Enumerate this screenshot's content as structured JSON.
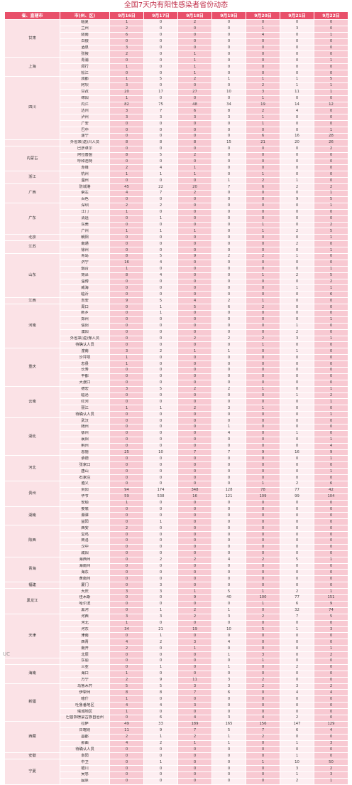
{
  "title": "全国7天内有阳性感染者省份动态",
  "headers": [
    "省、直辖市",
    "市(州、区)",
    "9月16日",
    "9月17日",
    "9月18日",
    "9月19日",
    "9月20日",
    "9月21日",
    "9月22日"
  ],
  "rows": [
    {
      "p": "甘肃",
      "span": 6,
      "c": "临夏",
      "v": [
        "1",
        "0",
        "2",
        "0",
        "0",
        "0",
        "0"
      ]
    },
    {
      "c": "兰州",
      "v": [
        "2",
        "0",
        "0",
        "0",
        "1",
        "3",
        "0"
      ]
    },
    {
      "c": "陇南",
      "v": [
        "6",
        "0",
        "0",
        "0",
        "4",
        "0",
        "1"
      ]
    },
    {
      "c": "白银",
      "v": [
        "0",
        "0",
        "0",
        "0",
        "0",
        "0",
        "0"
      ]
    },
    {
      "c": "酒泉",
      "v": [
        "3",
        "0",
        "0",
        "0",
        "0",
        "0",
        "0"
      ]
    },
    {
      "c": "张掖",
      "v": [
        "2",
        "0",
        "1",
        "0",
        "0",
        "0",
        "0"
      ]
    },
    {
      "p": "上海",
      "span": 3,
      "c": "青浦",
      "v": [
        "0",
        "0",
        "1",
        "0",
        "0",
        "0",
        "1"
      ]
    },
    {
      "c": "闵行",
      "v": [
        "1",
        "0",
        "1",
        "0",
        "0",
        "0",
        "0"
      ]
    },
    {
      "c": "松江",
      "v": [
        "0",
        "0",
        "1",
        "0",
        "0",
        "0",
        "0"
      ]
    },
    {
      "p": "四川",
      "span": 10,
      "c": "成都",
      "v": [
        "1",
        "5",
        "2",
        "1",
        "1",
        "1",
        "5"
      ]
    },
    {
      "c": "阿坝",
      "v": [
        "3",
        "0",
        "0",
        "0",
        "2",
        "1",
        "1"
      ]
    },
    {
      "c": "甘孜",
      "v": [
        "20",
        "17",
        "27",
        "10",
        "3",
        "11",
        "1"
      ]
    },
    {
      "c": "绵阳",
      "v": [
        "1",
        "0",
        "0",
        "0",
        "1",
        "0",
        "0"
      ]
    },
    {
      "c": "内江",
      "v": [
        "82",
        "75",
        "48",
        "34",
        "19",
        "14",
        "12"
      ]
    },
    {
      "c": "达州",
      "v": [
        "3",
        "7",
        "6",
        "8",
        "2",
        "4",
        "0"
      ]
    },
    {
      "c": "泸州",
      "v": [
        "3",
        "3",
        "3",
        "3",
        "1",
        "0",
        "0"
      ]
    },
    {
      "c": "广安",
      "v": [
        "0",
        "0",
        "0",
        "0",
        "1",
        "0",
        "0"
      ]
    },
    {
      "c": "巴中",
      "v": [
        "0",
        "0",
        "0",
        "0",
        "0",
        "0",
        "1"
      ]
    },
    {
      "c": "遂宁",
      "v": [
        "0",
        "0",
        "0",
        "0",
        "6",
        "16",
        "28"
      ]
    },
    {
      "p": "",
      "span": 1,
      "c": "外省来(返)川人员",
      "v": [
        "8",
        "8",
        "8",
        "15",
        "21",
        "20",
        "26"
      ]
    },
    {
      "p": "内蒙古",
      "span": 4,
      "c": "巴彦卓尔",
      "v": [
        "0",
        "0",
        "0",
        "0",
        "0",
        "0",
        "2"
      ]
    },
    {
      "c": "阿拉善盟",
      "v": [
        "8",
        "5",
        "2",
        "0",
        "0",
        "0",
        "0"
      ]
    },
    {
      "c": "呼和浩特",
      "v": [
        "0",
        "0",
        "0",
        "0",
        "0",
        "0",
        "0"
      ]
    },
    {
      "c": "赤峰",
      "v": [
        "2",
        "4",
        "1",
        "0",
        "0",
        "0",
        "0"
      ]
    },
    {
      "p": "浙江",
      "span": 2,
      "c": "杭州",
      "v": [
        "1",
        "1",
        "1",
        "0",
        "1",
        "0",
        "0"
      ]
    },
    {
      "c": "温州",
      "v": [
        "0",
        "0",
        "0",
        "1",
        "2",
        "1",
        "0"
      ]
    },
    {
      "p": "广西",
      "span": 3,
      "c": "防城港",
      "v": [
        "45",
        "22",
        "20",
        "7",
        "6",
        "2",
        "2"
      ]
    },
    {
      "c": "崇左",
      "v": [
        "4",
        "7",
        "2",
        "0",
        "0",
        "0",
        "1"
      ]
    },
    {
      "c": "百色",
      "v": [
        "0",
        "0",
        "0",
        "0",
        "0",
        "9",
        "5"
      ]
    },
    {
      "p": "广东",
      "span": 5,
      "c": "深圳",
      "v": [
        "2",
        "2",
        "0",
        "0",
        "0",
        "0",
        "1"
      ]
    },
    {
      "c": "江门",
      "v": [
        "1",
        "0",
        "0",
        "0",
        "0",
        "0",
        "0"
      ]
    },
    {
      "c": "清远",
      "v": [
        "0",
        "1",
        "0",
        "0",
        "0",
        "0",
        "0"
      ]
    },
    {
      "c": "东莞",
      "v": [
        "0",
        "0",
        "0",
        "0",
        "1",
        "0",
        "2"
      ]
    },
    {
      "c": "广州",
      "v": [
        "1",
        "1",
        "1",
        "0",
        "1",
        "2",
        "5"
      ]
    },
    {
      "p": "北京",
      "span": 1,
      "c": "朝阳",
      "v": [
        "0",
        "0",
        "0",
        "0",
        "0",
        "0",
        "1"
      ]
    },
    {
      "p": "江苏",
      "span": 2,
      "c": "南通",
      "v": [
        "0",
        "0",
        "0",
        "0",
        "0",
        "2",
        "0"
      ]
    },
    {
      "c": "徐州",
      "v": [
        "0",
        "0",
        "0",
        "0",
        "0",
        "0",
        "1"
      ]
    },
    {
      "p": "山东",
      "span": 7,
      "c": "青岛",
      "v": [
        "8",
        "5",
        "9",
        "2",
        "2",
        "1",
        "0"
      ]
    },
    {
      "c": "济宁",
      "v": [
        "16",
        "4",
        "0",
        "0",
        "0",
        "0",
        "0"
      ]
    },
    {
      "c": "烟台",
      "v": [
        "1",
        "0",
        "0",
        "0",
        "0",
        "0",
        "1"
      ]
    },
    {
      "c": "菏泽",
      "v": [
        "8",
        "4",
        "0",
        "0",
        "1",
        "2",
        "5"
      ]
    },
    {
      "c": "淄博",
      "v": [
        "0",
        "0",
        "0",
        "0",
        "0",
        "0",
        "2"
      ]
    },
    {
      "c": "威海",
      "v": [
        "0",
        "0",
        "0",
        "0",
        "0",
        "1",
        "1"
      ]
    },
    {
      "c": "临沂",
      "v": [
        "0",
        "0",
        "0",
        "0",
        "0",
        "0",
        "6"
      ]
    },
    {
      "p": "江西",
      "span": 1,
      "c": "吉安",
      "v": [
        "9",
        "5",
        "4",
        "2",
        "1",
        "0",
        "0"
      ]
    },
    {
      "p": "河南",
      "span": 7,
      "c": "周口",
      "v": [
        "0",
        "1",
        "5",
        "6",
        "2",
        "0",
        "0"
      ]
    },
    {
      "c": "新乡",
      "v": [
        "0",
        "1",
        "0",
        "0",
        "0",
        "0",
        "0"
      ]
    },
    {
      "c": "郑州",
      "v": [
        "0",
        "0",
        "0",
        "0",
        "0",
        "0",
        "1"
      ]
    },
    {
      "c": "信阳",
      "v": [
        "0",
        "0",
        "0",
        "0",
        "0",
        "1",
        "0"
      ]
    },
    {
      "c": "濮阳",
      "v": [
        "0",
        "0",
        "0",
        "0",
        "0",
        "2",
        "0"
      ]
    },
    {
      "c": "外省来(返)豫人员",
      "v": [
        "0",
        "0",
        "2",
        "2",
        "2",
        "3",
        "1"
      ]
    },
    {
      "c": "待确认人员",
      "v": [
        "0",
        "0",
        "0",
        "0",
        "1",
        "0",
        "0"
      ]
    },
    {
      "p": "重庆",
      "span": 6,
      "c": "潼南",
      "v": [
        "3",
        "2",
        "1",
        "1",
        "0",
        "1",
        "0"
      ]
    },
    {
      "c": "沙坪坝",
      "v": [
        "1",
        "0",
        "0",
        "0",
        "0",
        "0",
        "0"
      ]
    },
    {
      "c": "忠县",
      "v": [
        "1",
        "0",
        "0",
        "0",
        "0",
        "0",
        "0"
      ]
    },
    {
      "c": "长寿",
      "v": [
        "0",
        "0",
        "0",
        "0",
        "0",
        "0",
        "0"
      ]
    },
    {
      "c": "丰都",
      "v": [
        "0",
        "0",
        "0",
        "0",
        "0",
        "0",
        "0"
      ]
    },
    {
      "c": "大渡口",
      "v": [
        "0",
        "0",
        "0",
        "0",
        "0",
        "0",
        "0"
      ]
    },
    {
      "p": "云南",
      "span": 5,
      "c": "德宏",
      "v": [
        "3",
        "5",
        "2",
        "2",
        "1",
        "0",
        "1"
      ]
    },
    {
      "c": "临沧",
      "v": [
        "0",
        "0",
        "0",
        "0",
        "0",
        "1",
        "2"
      ]
    },
    {
      "c": "红河",
      "v": [
        "0",
        "0",
        "0",
        "0",
        "0",
        "0",
        "1"
      ]
    },
    {
      "c": "丽江",
      "v": [
        "1",
        "1",
        "2",
        "3",
        "1",
        "0",
        "0"
      ]
    },
    {
      "c": "待确认人员",
      "v": [
        "0",
        "0",
        "0",
        "0",
        "0",
        "0",
        "1"
      ]
    },
    {
      "p": "湖北",
      "span": 6,
      "c": "武汉",
      "v": [
        "0",
        "0",
        "0",
        "0",
        "0",
        "0",
        "0"
      ]
    },
    {
      "c": "随州",
      "v": [
        "0",
        "0",
        "0",
        "1",
        "0",
        "0",
        "0"
      ]
    },
    {
      "c": "鄂州",
      "v": [
        "0",
        "0",
        "0",
        "4",
        "0",
        "1",
        "0"
      ]
    },
    {
      "c": "襄阳",
      "v": [
        "0",
        "0",
        "0",
        "0",
        "0",
        "0",
        "1"
      ]
    },
    {
      "c": "荆州",
      "v": [
        "0",
        "0",
        "0",
        "0",
        "0",
        "0",
        "4"
      ]
    },
    {
      "c": "恩施",
      "v": [
        "25",
        "10",
        "7",
        "7",
        "9",
        "16",
        "9"
      ]
    },
    {
      "p": "河北",
      "span": 4,
      "c": "承德",
      "v": [
        "0",
        "0",
        "0",
        "0",
        "0",
        "0",
        "1"
      ]
    },
    {
      "c": "张家口",
      "v": [
        "0",
        "0",
        "0",
        "0",
        "0",
        "0",
        "0"
      ]
    },
    {
      "c": "唐山",
      "v": [
        "0",
        "0",
        "0",
        "0",
        "0",
        "0",
        "1"
      ]
    },
    {
      "c": "石家庄",
      "v": [
        "0",
        "0",
        "0",
        "0",
        "0",
        "0",
        "0"
      ]
    },
    {
      "p": "贵州",
      "span": 4,
      "c": "遵义",
      "v": [
        "0",
        "0",
        "0",
        "0",
        "1",
        "2",
        "6"
      ]
    },
    {
      "c": "贵阳",
      "v": [
        "94",
        "174",
        "348",
        "128",
        "78",
        "77",
        "42"
      ]
    },
    {
      "c": "毕节",
      "v": [
        "59",
        "538",
        "16",
        "121",
        "109",
        "99",
        "104"
      ]
    },
    {
      "c": "安顺",
      "v": [
        "1",
        "0",
        "0",
        "0",
        "0",
        "0",
        "0"
      ]
    },
    {
      "p": "湖南",
      "span": 3,
      "c": "娄底",
      "v": [
        "0",
        "0",
        "0",
        "0",
        "0",
        "0",
        "0"
      ]
    },
    {
      "c": "湘潭",
      "v": [
        "0",
        "0",
        "0",
        "0",
        "0",
        "0",
        "0"
      ]
    },
    {
      "c": "益阳",
      "v": [
        "0",
        "1",
        "0",
        "0",
        "0",
        "0",
        "0"
      ]
    },
    {
      "p": "陕西",
      "span": 5,
      "c": "西安",
      "v": [
        "2",
        "0",
        "0",
        "0",
        "0",
        "0",
        "0"
      ]
    },
    {
      "c": "宝鸡",
      "v": [
        "0",
        "0",
        "0",
        "0",
        "0",
        "0",
        "0"
      ]
    },
    {
      "c": "商洛",
      "v": [
        "0",
        "0",
        "0",
        "0",
        "0",
        "0",
        "0"
      ]
    },
    {
      "c": "汉中",
      "v": [
        "0",
        "0",
        "0",
        "0",
        "0",
        "0",
        "0"
      ]
    },
    {
      "c": "咸阳",
      "v": [
        "0",
        "0",
        "0",
        "0",
        "0",
        "0",
        "0"
      ]
    },
    {
      "p": "青海",
      "span": 4,
      "c": "海西州",
      "v": [
        "0",
        "2",
        "2",
        "4",
        "2",
        "5",
        "1"
      ]
    },
    {
      "c": "海南州",
      "v": [
        "0",
        "0",
        "0",
        "0",
        "0",
        "0",
        "0"
      ]
    },
    {
      "c": "海东",
      "v": [
        "0",
        "0",
        "0",
        "0",
        "0",
        "0",
        "0"
      ]
    },
    {
      "c": "黄南州",
      "v": [
        "0",
        "0",
        "0",
        "0",
        "0",
        "0",
        "0"
      ]
    },
    {
      "p": "福建",
      "span": 1,
      "c": "厦门",
      "v": [
        "0",
        "3",
        "0",
        "0",
        "0",
        "0",
        "0"
      ]
    },
    {
      "p": "黑龙江",
      "span": 4,
      "c": "大庆",
      "v": [
        "3",
        "3",
        "1",
        "5",
        "1",
        "2",
        "1"
      ]
    },
    {
      "c": "佳木斯",
      "v": [
        "0",
        "0",
        "9",
        "40",
        "100",
        "77",
        "151"
      ]
    },
    {
      "c": "哈尔滨",
      "v": [
        "0",
        "0",
        "0",
        "0",
        "1",
        "6",
        "9"
      ]
    },
    {
      "c": "黑河",
      "v": [
        "0",
        "1",
        "2",
        "1",
        "0",
        "32",
        "74"
      ]
    },
    {
      "p": "天津",
      "span": 7,
      "c": "河西",
      "v": [
        "3",
        "3",
        "2",
        "3",
        "2",
        "7",
        "5"
      ]
    },
    {
      "c": "河北",
      "v": [
        "1",
        "0",
        "0",
        "0",
        "0",
        "0",
        "0"
      ]
    },
    {
      "c": "河东",
      "v": [
        "34",
        "21",
        "19",
        "10",
        "5",
        "1",
        "3"
      ]
    },
    {
      "c": "津南",
      "v": [
        "0",
        "1",
        "0",
        "0",
        "0",
        "0",
        "0"
      ]
    },
    {
      "c": "西青",
      "v": [
        "4",
        "2",
        "3",
        "4",
        "0",
        "0",
        "0"
      ]
    },
    {
      "c": "南开",
      "v": [
        "2",
        "0",
        "1",
        "0",
        "0",
        "0",
        "1"
      ]
    },
    {
      "c": "北辰",
      "v": [
        "0",
        "0",
        "0",
        "1",
        "3",
        "0",
        "2"
      ]
    },
    {
      "p": "",
      "span": 1,
      "c": "东丽",
      "v": [
        "0",
        "0",
        "0",
        "0",
        "1",
        "0",
        "0"
      ]
    },
    {
      "p": "海南",
      "span": 3,
      "c": "三亚",
      "v": [
        "0",
        "1",
        "0",
        "1",
        "0",
        "2",
        "0"
      ]
    },
    {
      "c": "海口",
      "v": [
        "1",
        "0",
        "0",
        "0",
        "0",
        "0",
        "0"
      ]
    },
    {
      "c": "万宁",
      "v": [
        "2",
        "9",
        "11",
        "3",
        "2",
        "0",
        "0"
      ]
    },
    {
      "p": "新疆",
      "span": 6,
      "c": "乌鲁木齐",
      "v": [
        "5",
        "5",
        "3",
        "3",
        "2",
        "3",
        "2"
      ]
    },
    {
      "c": "伊犁州",
      "v": [
        "8",
        "8",
        "7",
        "6",
        "0",
        "4",
        "4"
      ]
    },
    {
      "c": "喀什",
      "v": [
        "1",
        "0",
        "0",
        "0",
        "0",
        "0",
        "0"
      ]
    },
    {
      "c": "吐鲁番地区",
      "v": [
        "4",
        "4",
        "3",
        "0",
        "0",
        "0",
        "0"
      ]
    },
    {
      "c": "塔城地区",
      "v": [
        "1",
        "0",
        "0",
        "0",
        "0",
        "0",
        "0"
      ]
    },
    {
      "c": "巴音郭楞蒙古族自治州",
      "v": [
        "0",
        "6",
        "4",
        "3",
        "4",
        "2",
        "0"
      ]
    },
    {
      "p": "西藏",
      "span": 5,
      "c": "拉萨",
      "v": [
        "49",
        "33",
        "189",
        "165",
        "156",
        "147",
        "129"
      ]
    },
    {
      "c": "日喀则",
      "v": [
        "11",
        "9",
        "7",
        "5",
        "7",
        "6",
        "4"
      ]
    },
    {
      "c": "昌都",
      "v": [
        "2",
        "1",
        "2",
        "1",
        "2",
        "0",
        "0"
      ]
    },
    {
      "c": "那曲",
      "v": [
        "4",
        "2",
        "1",
        "1",
        "0",
        "1",
        "3"
      ]
    },
    {
      "c": "待确认人员",
      "v": [
        "0",
        "0",
        "0",
        "0",
        "0",
        "0",
        "0"
      ]
    },
    {
      "p": "安徽",
      "span": 1,
      "c": "阜阳",
      "v": [
        "0",
        "0",
        "0",
        "0",
        "0",
        "1",
        "0"
      ]
    },
    {
      "p": "宁夏",
      "span": 4,
      "c": "中卫",
      "v": [
        "0",
        "1",
        "0",
        "0",
        "1",
        "10",
        "50"
      ]
    },
    {
      "c": "银川",
      "v": [
        "0",
        "0",
        "0",
        "0",
        "0",
        "3",
        "2"
      ]
    },
    {
      "c": "吴忠",
      "v": [
        "0",
        "0",
        "0",
        "0",
        "0",
        "1",
        "3"
      ]
    },
    {
      "c": "固原",
      "v": [
        "0",
        "0",
        "0",
        "0",
        "0",
        "2",
        "1"
      ]
    }
  ]
}
